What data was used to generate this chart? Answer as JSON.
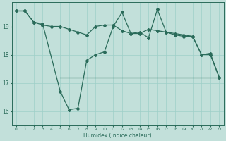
{
  "xlabel": "Humidex (Indice chaleur)",
  "bg_color": "#c2e0da",
  "line_color": "#2a6b5a",
  "grid_color": "#9ecfc8",
  "xlim": [
    -0.5,
    23.5
  ],
  "ylim": [
    15.5,
    19.85
  ],
  "yticks": [
    16,
    17,
    18,
    19
  ],
  "xticks": [
    0,
    1,
    2,
    3,
    4,
    5,
    6,
    7,
    8,
    9,
    10,
    11,
    12,
    13,
    14,
    15,
    16,
    17,
    18,
    19,
    20,
    21,
    22,
    23
  ],
  "series_wavy": [
    19.55,
    19.55,
    19.15,
    19.1,
    16.7,
    16.05,
    16.1,
    17.8,
    18.0,
    18.1,
    19.0,
    19.5,
    18.75,
    18.8,
    18.6,
    19.6,
    18.8,
    18.7,
    18.65,
    18.65,
    18.0,
    18.05,
    17.2
  ],
  "series_wavy_x": [
    0,
    1,
    2,
    3,
    5,
    6,
    7,
    8,
    9,
    10,
    11,
    12,
    13,
    14,
    15,
    16,
    17,
    18,
    19,
    20,
    21,
    22,
    23
  ],
  "series_flat": [
    17.2,
    17.2,
    17.2,
    17.2,
    17.2,
    17.2,
    17.2,
    17.2,
    17.2,
    17.2,
    17.2,
    17.2,
    17.2,
    17.2,
    17.2,
    17.2,
    17.2,
    17.2,
    17.2
  ],
  "series_flat_x": [
    5,
    6,
    7,
    8,
    9,
    10,
    11,
    12,
    13,
    14,
    15,
    16,
    17,
    18,
    19,
    20,
    21,
    22,
    23
  ],
  "series_slope": [
    19.55,
    19.55,
    19.15,
    19.05,
    19.0,
    19.0,
    18.9,
    18.8,
    18.7,
    19.0,
    19.05,
    19.05,
    18.85,
    18.75,
    18.75,
    18.9,
    18.85,
    18.8,
    18.75,
    18.7,
    18.65,
    18.0,
    18.0,
    17.2
  ],
  "series_slope_x": [
    0,
    1,
    2,
    3,
    4,
    5,
    6,
    7,
    8,
    9,
    10,
    11,
    12,
    13,
    14,
    15,
    16,
    17,
    18,
    19,
    20,
    21,
    22,
    23
  ]
}
